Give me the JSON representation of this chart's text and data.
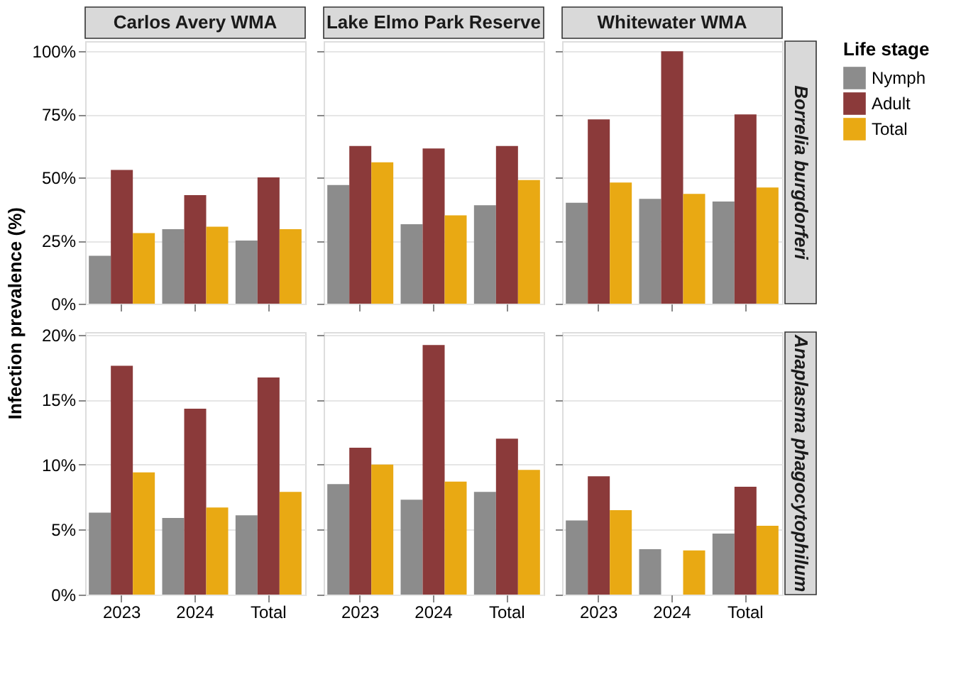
{
  "chart_data": [
    {
      "type": "bar",
      "title": "Carlos Avery WMA",
      "ylabel": "Infection prevalence (%)",
      "categories": [
        "2023",
        "2024",
        "Total"
      ],
      "series": [
        {
          "name": "Nymph",
          "color": "#8c8c8c",
          "values": [
            19,
            29.5,
            25
          ]
        },
        {
          "name": "Adult",
          "color": "#8b3a3a",
          "values": [
            53,
            43,
            50
          ]
        },
        {
          "name": "Total",
          "color": "#e9a913",
          "values": [
            28,
            30.5,
            29.5
          ]
        }
      ],
      "ylim": [
        0,
        104
      ],
      "yticks": [
        {
          "value": 0,
          "label": "0%"
        },
        {
          "value": 25,
          "label": "25%"
        },
        {
          "value": 50,
          "label": "50%"
        },
        {
          "value": 75,
          "label": "75%"
        },
        {
          "value": 100,
          "label": "100%"
        }
      ],
      "grid": "y",
      "tick_labels": "y",
      "legend": "right",
      "legend_title": "Life stage"
    },
    {
      "type": "bar",
      "title": "Lake Elmo Park Reserve",
      "categories": [
        "2023",
        "2024",
        "Total"
      ],
      "series": [
        {
          "color": "#8c8c8c",
          "values": [
            47,
            31.5,
            39
          ]
        },
        {
          "color": "#8b3a3a",
          "values": [
            62.5,
            61.5,
            62.5
          ]
        },
        {
          "color": "#e9a913",
          "values": [
            56,
            35,
            49
          ]
        }
      ],
      "ylim": [
        0,
        104
      ],
      "yticks": [
        {
          "value": 0,
          "label": null
        },
        {
          "value": 25,
          "label": null
        },
        {
          "value": 50,
          "label": null
        },
        {
          "value": 75,
          "label": null
        },
        {
          "value": 100,
          "label": null
        }
      ],
      "grid": "y",
      "tick_labels": false
    },
    {
      "type": "bar",
      "title": "Whitewater WMA",
      "annotations": [
        "Borrelia burgdorferi"
      ],
      "categories": [
        "2023",
        "2024",
        "Total"
      ],
      "series": [
        {
          "color": "#8c8c8c",
          "values": [
            40,
            41.5,
            40.5
          ]
        },
        {
          "color": "#8b3a3a",
          "values": [
            73,
            100,
            75
          ]
        },
        {
          "color": "#e9a913",
          "values": [
            48,
            43.5,
            46
          ]
        }
      ],
      "ylim": [
        0,
        104
      ],
      "yticks": [
        {
          "value": 0,
          "label": null
        },
        {
          "value": 25,
          "label": null
        },
        {
          "value": 50,
          "label": null
        },
        {
          "value": 75,
          "label": null
        },
        {
          "value": 100,
          "label": null
        }
      ],
      "grid": "y",
      "tick_labels": false
    },
    {
      "type": "bar",
      "categories": [
        "2023",
        "2024",
        "Total"
      ],
      "series": [
        {
          "color": "#8c8c8c",
          "values": [
            6.3,
            5.9,
            6.1
          ]
        },
        {
          "color": "#8b3a3a",
          "values": [
            17.6,
            14.3,
            16.7
          ]
        },
        {
          "color": "#e9a913",
          "values": [
            9.4,
            6.7,
            7.9
          ]
        }
      ],
      "ylim": [
        0,
        20.2
      ],
      "yticks": [
        {
          "value": 0,
          "label": "0%"
        },
        {
          "value": 5,
          "label": "5%"
        },
        {
          "value": 10,
          "label": "10%"
        },
        {
          "value": 15,
          "label": "15%"
        },
        {
          "value": 20,
          "label": "20%"
        }
      ],
      "grid": "y"
    },
    {
      "type": "bar",
      "categories": [
        "2023",
        "2024",
        "Total"
      ],
      "series": [
        {
          "color": "#8c8c8c",
          "values": [
            8.5,
            7.3,
            7.9
          ]
        },
        {
          "color": "#8b3a3a",
          "values": [
            11.3,
            19.2,
            12.0
          ]
        },
        {
          "color": "#e9a913",
          "values": [
            10.0,
            8.7,
            9.6
          ]
        }
      ],
      "ylim": [
        0,
        20.2
      ],
      "yticks": [
        {
          "value": 0,
          "label": null
        },
        {
          "value": 5,
          "label": null
        },
        {
          "value": 10,
          "label": null
        },
        {
          "value": 15,
          "label": null
        },
        {
          "value": 20,
          "label": null
        }
      ],
      "grid": "y",
      "tick_labels": "x"
    },
    {
      "type": "bar",
      "annotations": [
        "Anaplasma phagocytophilum"
      ],
      "categories": [
        "2023",
        "2024",
        "Total"
      ],
      "series": [
        {
          "color": "#8c8c8c",
          "values": [
            5.7,
            3.5,
            4.7
          ]
        },
        {
          "color": "#8b3a3a",
          "values": [
            9.1,
            0,
            8.3
          ]
        },
        {
          "color": "#e9a913",
          "values": [
            6.5,
            3.4,
            5.3
          ]
        }
      ],
      "ylim": [
        0,
        20.2
      ],
      "yticks": [
        {
          "value": 0,
          "label": null
        },
        {
          "value": 5,
          "label": null
        },
        {
          "value": 10,
          "label": null
        },
        {
          "value": 15,
          "label": null
        },
        {
          "value": 20,
          "label": null
        }
      ],
      "grid": "y",
      "tick_labels": "x"
    }
  ]
}
